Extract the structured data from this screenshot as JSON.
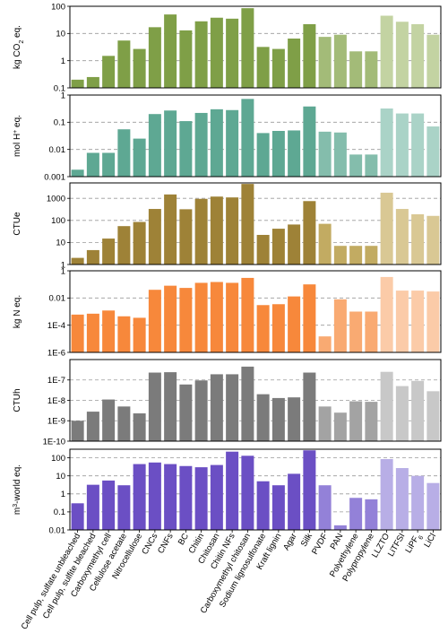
{
  "categories": [
    "Cell pulp, sulfate unbleached",
    "Cell pulp, sulfite bleached",
    "Carboxymethyl cell",
    "Cellulose acetate",
    "Nitrocellulose",
    "CNCs",
    "CNFs",
    "BC",
    "Chitin",
    "Chitosan",
    "Chitin NFs",
    "Carboxymethyl chitosan",
    "Sodium lignosulfonate",
    "Kraft lignin",
    "Agar",
    "Silk",
    "PVDF",
    "PAN",
    "Polyethylene",
    "Polypropylene",
    "LLZTO",
    "LiTFSI",
    "LiPF6",
    "LiCl"
  ],
  "chart_data": [
    {
      "type": "bar",
      "scale": "log",
      "ylim": [
        0.1,
        100
      ],
      "ylabel": {
        "main": "kg CO",
        "sub": "2",
        "tail": " eq."
      },
      "ticks": [
        "100",
        "10",
        "1",
        "0.1"
      ],
      "tick_values": [
        100,
        10,
        1,
        0.1
      ],
      "colors": {
        "a": "#7f9f47",
        "b": "#a3bb78",
        "c": "#c3d3a2"
      },
      "values": [
        0.2,
        0.25,
        1.5,
        5.5,
        2.7,
        17,
        50,
        13,
        28,
        38,
        35,
        85,
        3.2,
        2.7,
        6.5,
        22,
        7.5,
        9,
        2.2,
        2.2,
        45,
        27,
        22,
        9
      ]
    },
    {
      "type": "bar",
      "scale": "log",
      "ylim": [
        0.001,
        1
      ],
      "ylabel": {
        "main": "mol H",
        "sup": "+",
        "tail": " eq."
      },
      "ticks": [
        "1",
        "0.1",
        "0.01",
        "0.001"
      ],
      "tick_values": [
        1,
        0.1,
        0.01,
        0.001
      ],
      "colors": {
        "a": "#5ea893",
        "b": "#84bdac",
        "c": "#aad3c7"
      },
      "values": [
        0.0018,
        0.0075,
        0.0075,
        0.055,
        0.025,
        0.2,
        0.27,
        0.11,
        0.22,
        0.3,
        0.28,
        0.72,
        0.04,
        0.048,
        0.05,
        0.38,
        0.045,
        0.042,
        0.0065,
        0.0065,
        0.32,
        0.21,
        0.21,
        0.07
      ]
    },
    {
      "type": "bar",
      "scale": "log",
      "ylim": [
        1,
        5000
      ],
      "ylabel": {
        "main": "CTUe"
      },
      "ticks": [
        "1000",
        "100",
        "10",
        "1"
      ],
      "tick_values": [
        1000,
        100,
        10,
        1
      ],
      "colors": {
        "a": "#9e8237",
        "b": "#c2ab62",
        "c": "#d9c894"
      },
      "values": [
        2,
        4.5,
        15,
        55,
        85,
        330,
        1500,
        320,
        950,
        1200,
        1100,
        4500,
        22,
        42,
        65,
        750,
        70,
        7,
        7,
        7,
        1800,
        330,
        190,
        160
      ]
    },
    {
      "type": "bar",
      "scale": "log",
      "ylim": [
        1e-06,
        1
      ],
      "ylabel": {
        "main": "kg N eq."
      },
      "ticks": [
        "1",
        "0.01",
        "1E-4",
        "1E-6"
      ],
      "tick_values": [
        1,
        0.01,
        0.0001,
        1e-06
      ],
      "colors": {
        "a": "#f7883b",
        "b": "#f9aa72",
        "c": "#fbcba8"
      },
      "values": [
        0.0006,
        0.0007,
        0.0012,
        0.00045,
        0.00035,
        0.04,
        0.08,
        0.055,
        0.13,
        0.15,
        0.13,
        0.3,
        0.003,
        0.0035,
        0.013,
        0.1,
        1.5e-05,
        0.008,
        0.001,
        0.001,
        0.35,
        0.035,
        0.035,
        0.03
      ]
    },
    {
      "type": "bar",
      "scale": "log",
      "ylim": [
        1e-10,
        1e-06
      ],
      "ylabel": {
        "main": "CTUh"
      },
      "ticks": [
        "1E-7",
        "1E-8",
        "1E-9",
        "1E-10"
      ],
      "tick_values": [
        1e-07,
        1e-08,
        1e-09,
        1e-10
      ],
      "colors": {
        "a": "#7b7b7b",
        "b": "#a3a3a3",
        "c": "#c8c8c8"
      },
      "values": [
        1e-09,
        2.8e-09,
        1.1e-08,
        5e-09,
        2.3e-09,
        2.3e-07,
        2.4e-07,
        6e-08,
        9.5e-08,
        1.9e-07,
        1.9e-07,
        4.5e-07,
        2e-08,
        1.3e-08,
        1.4e-08,
        2.3e-07,
        5e-09,
        2.5e-09,
        9e-09,
        8.5e-09,
        2.5e-07,
        5e-08,
        9e-08,
        2.8e-08
      ]
    },
    {
      "type": "bar",
      "scale": "log",
      "ylim": [
        0.01,
        300
      ],
      "ylabel": {
        "main": "m",
        "sup": "3",
        "tail": "-world eq."
      },
      "ticks": [
        "100",
        "10",
        "1",
        "0.1",
        "0.01"
      ],
      "tick_values": [
        100,
        10,
        1,
        0.1,
        0.01
      ],
      "colors": {
        "a": "#6b4fc4",
        "b": "#9381d8",
        "c": "#b8aee6"
      },
      "values": [
        0.3,
        3.2,
        5.5,
        3,
        45,
        55,
        45,
        35,
        30,
        40,
        220,
        130,
        5,
        3,
        13,
        260,
        3,
        0.018,
        0.6,
        0.5,
        85,
        27,
        10,
        4
      ]
    }
  ]
}
